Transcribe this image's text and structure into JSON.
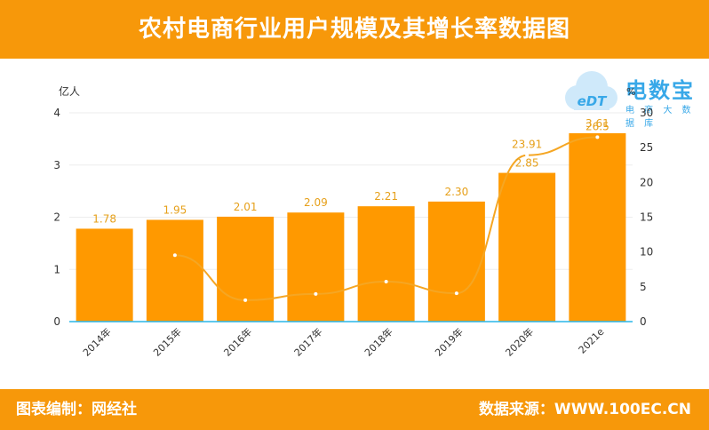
{
  "title": "农村电商行业用户规模及其增长率数据图",
  "footer": {
    "left": "图表编制：网经社",
    "right": "数据来源：WWW.100EC.CN"
  },
  "logo": {
    "title": "电数宝",
    "subtitle": "电 商 大 数 据 库",
    "mark": "eDT",
    "colors": {
      "cloud": "#CFE9FA",
      "text": "#38A8E8"
    }
  },
  "colors": {
    "bar": "#FF9900",
    "line": "#F5A623",
    "header": "#F7980A",
    "axis": "#29B6E8",
    "label": "#E6A01A"
  },
  "chart_data": {
    "type": "bar",
    "categories": [
      "2014年",
      "2015年",
      "2016年",
      "2017年",
      "2018年",
      "2019年",
      "2020年",
      "2021e"
    ],
    "series": [
      {
        "values": [
          1.78,
          1.95,
          2.01,
          2.09,
          2.21,
          2.3,
          2.85,
          3.61
        ],
        "value_labels": [
          "1.78",
          "1.95",
          "2.01",
          "2.09",
          "2.21",
          "2.30",
          "2.85",
          "3.61"
        ]
      },
      {
        "type": "line",
        "axis": "right",
        "values": [
          null,
          9.55,
          3.08,
          3.98,
          5.74,
          4.07,
          23.91,
          26.5
        ],
        "value_labels": [
          "",
          "",
          "",
          "",
          "",
          "",
          "23.91",
          "26.5"
        ]
      }
    ],
    "ylabel_left": "亿人",
    "ylabel_right": "%",
    "yticks_left": [
      "0",
      "1",
      "2",
      "3",
      "4"
    ],
    "yticks_right": [
      "0",
      "5",
      "10",
      "15",
      "20",
      "25",
      "30"
    ],
    "ylim_left": [
      0,
      4
    ],
    "ylim_right": [
      0,
      30
    ],
    "grid": true,
    "legend": "none"
  }
}
